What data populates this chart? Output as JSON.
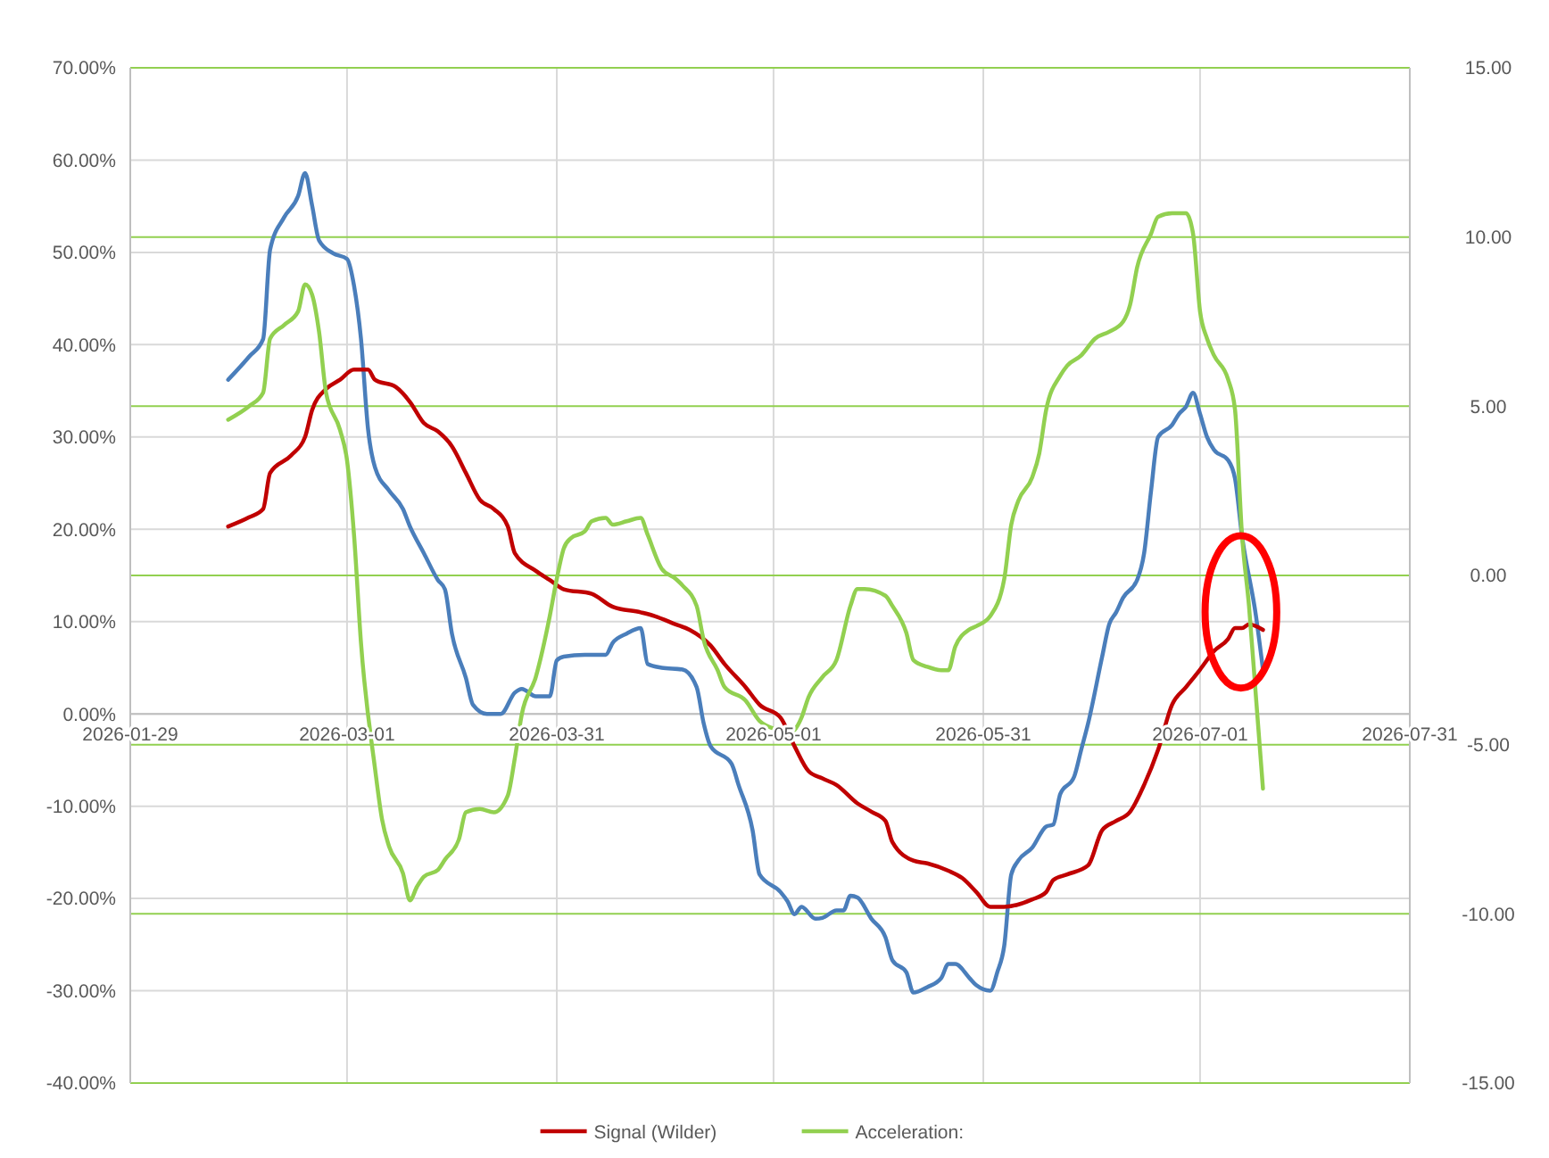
{
  "chart_data": {
    "type": "line",
    "xlim": [
      "2026-01-29",
      "2026-07-31"
    ],
    "xticks": [
      {
        "value": "2026-01-29",
        "label": "2026-01-29"
      },
      {
        "value": "2026-03-01",
        "label": "2026-03-01"
      },
      {
        "value": "2026-03-31",
        "label": "2026-03-31"
      },
      {
        "value": "2026-05-01",
        "label": "2026-05-01"
      },
      {
        "value": "2026-05-31",
        "label": "2026-05-31"
      },
      {
        "value": "2026-07-01",
        "label": "2026-07-01"
      },
      {
        "value": "2026-07-31",
        "label": "2026-07-31"
      }
    ],
    "ylim": [
      -40,
      70
    ],
    "yticks": [
      {
        "value": 70,
        "label": "70.00%"
      },
      {
        "value": 60,
        "label": "60.00%"
      },
      {
        "value": 50,
        "label": "50.00%"
      },
      {
        "value": 40,
        "label": "40.00%"
      },
      {
        "value": 30,
        "label": "30.00%"
      },
      {
        "value": 20,
        "label": "20.00%"
      },
      {
        "value": 10,
        "label": "10.00%"
      },
      {
        "value": 0,
        "label": "0.00%"
      },
      {
        "value": -10,
        "label": "-10.00%"
      },
      {
        "value": -20,
        "label": "-20.00%"
      },
      {
        "value": -30,
        "label": "-30.00%"
      },
      {
        "value": -40,
        "label": "-40.00%"
      }
    ],
    "y2lim": [
      -15,
      15
    ],
    "y2ticks": [
      {
        "value": 15,
        "label": "15.00"
      },
      {
        "value": 10,
        "label": "10.00"
      },
      {
        "value": 5,
        "label": "5.00"
      },
      {
        "value": 0,
        "label": "0.00"
      },
      {
        "value": -5,
        "label": "-5.00"
      },
      {
        "value": -10,
        "label": "-10.00"
      },
      {
        "value": -15,
        "label": "-15.00"
      }
    ],
    "grid": true,
    "legend": "bottom",
    "series": [
      {
        "color": "#4a7ebb",
        "x": [
          "2026-02-12",
          "2026-02-15",
          "2026-02-17",
          "2026-02-18",
          "2026-02-20",
          "2026-02-22",
          "2026-02-23",
          "2026-02-24",
          "2026-02-25",
          "2026-02-27",
          "2026-03-01",
          "2026-03-02",
          "2026-03-03",
          "2026-03-04",
          "2026-03-05",
          "2026-03-07",
          "2026-03-09",
          "2026-03-10",
          "2026-03-12",
          "2026-03-14",
          "2026-03-15",
          "2026-03-16",
          "2026-03-18",
          "2026-03-19",
          "2026-03-21",
          "2026-03-23",
          "2026-03-25",
          "2026-03-26",
          "2026-03-28",
          "2026-03-30",
          "2026-03-31",
          "2026-04-01",
          "2026-04-04",
          "2026-04-07",
          "2026-04-08",
          "2026-04-10",
          "2026-04-12",
          "2026-04-13",
          "2026-04-15",
          "2026-04-18",
          "2026-04-20",
          "2026-04-21",
          "2026-04-22",
          "2026-04-25",
          "2026-04-26",
          "2026-04-28",
          "2026-04-29",
          "2026-05-02",
          "2026-05-03",
          "2026-05-04",
          "2026-05-05",
          "2026-05-07",
          "2026-05-08",
          "2026-05-10",
          "2026-05-11",
          "2026-05-12",
          "2026-05-13",
          "2026-05-15",
          "2026-05-17",
          "2026-05-18",
          "2026-05-20",
          "2026-05-21",
          "2026-05-23",
          "2026-05-25",
          "2026-05-26",
          "2026-05-27",
          "2026-05-29",
          "2026-05-30",
          "2026-06-01",
          "2026-06-02",
          "2026-06-03",
          "2026-06-04",
          "2026-06-05",
          "2026-06-07",
          "2026-06-09",
          "2026-06-10",
          "2026-06-11",
          "2026-06-13",
          "2026-06-14",
          "2026-06-15",
          "2026-06-17",
          "2026-06-18",
          "2026-06-19",
          "2026-06-20",
          "2026-06-22",
          "2026-06-23",
          "2026-06-24",
          "2026-06-25",
          "2026-06-27",
          "2026-06-28",
          "2026-06-29",
          "2026-06-30",
          "2026-07-01",
          "2026-07-02",
          "2026-07-03",
          "2026-07-05",
          "2026-07-06",
          "2026-07-07",
          "2026-07-09",
          "2026-07-10"
        ],
        "values": [
          36.2,
          38.7,
          40.6,
          50.3,
          53.8,
          56.1,
          58.6,
          55.1,
          51.3,
          49.9,
          49.3,
          46.4,
          40.6,
          30.9,
          26.7,
          24.2,
          22.2,
          20.3,
          17.4,
          14.5,
          13.5,
          8.7,
          3.9,
          1.0,
          0,
          0,
          2.3,
          2.7,
          1.9,
          1.9,
          5.8,
          6.2,
          6.4,
          6.4,
          7.7,
          8.7,
          9.3,
          5.4,
          5.0,
          4.8,
          2.9,
          -1.0,
          -3.5,
          -5.4,
          -7.7,
          -12.6,
          -17.4,
          -19.3,
          -20.3,
          -21.7,
          -20.9,
          -22.2,
          -22.1,
          -21.3,
          -21.3,
          -19.7,
          -19.9,
          -22.2,
          -24.2,
          -26.7,
          -28.0,
          -30.2,
          -29.6,
          -28.6,
          -27.1,
          -27.1,
          -28.6,
          -29.4,
          -30.0,
          -28.0,
          -25.1,
          -17.4,
          -15.9,
          -14.5,
          -12.2,
          -12.0,
          -8.7,
          -6.8,
          -3.9,
          -1.0,
          6.2,
          9.7,
          11.0,
          12.6,
          14.5,
          17.4,
          24.2,
          30.0,
          31.3,
          32.5,
          33.3,
          34.8,
          32.5,
          30.0,
          28.6,
          27.5,
          25.5,
          19.3,
          10.6,
          4.8
        ]
      },
      {
        "name": "Signal (Wilder)",
        "color": "#c00000",
        "x": [
          "2026-02-12",
          "2026-02-15",
          "2026-02-17",
          "2026-02-18",
          "2026-02-21",
          "2026-02-23",
          "2026-02-24",
          "2026-02-26",
          "2026-02-28",
          "2026-03-02",
          "2026-03-04",
          "2026-03-05",
          "2026-03-08",
          "2026-03-10",
          "2026-03-12",
          "2026-03-14",
          "2026-03-16",
          "2026-03-18",
          "2026-03-20",
          "2026-03-22",
          "2026-03-24",
          "2026-03-25",
          "2026-03-28",
          "2026-03-30",
          "2026-04-01",
          "2026-04-05",
          "2026-04-08",
          "2026-04-12",
          "2026-04-14",
          "2026-04-17",
          "2026-04-19",
          "2026-04-22",
          "2026-04-24",
          "2026-04-27",
          "2026-04-29",
          "2026-05-02",
          "2026-05-04",
          "2026-05-06",
          "2026-05-08",
          "2026-05-10",
          "2026-05-13",
          "2026-05-15",
          "2026-05-17",
          "2026-05-18",
          "2026-05-21",
          "2026-05-23",
          "2026-05-26",
          "2026-05-28",
          "2026-05-30",
          "2026-06-01",
          "2026-06-03",
          "2026-06-07",
          "2026-06-09",
          "2026-06-10",
          "2026-06-12",
          "2026-06-15",
          "2026-06-17",
          "2026-06-19",
          "2026-06-21",
          "2026-06-23",
          "2026-06-25",
          "2026-06-27",
          "2026-06-29",
          "2026-07-01",
          "2026-07-03",
          "2026-07-05",
          "2026-07-06",
          "2026-07-07",
          "2026-07-08",
          "2026-07-10"
        ],
        "values": [
          20.3,
          21.3,
          22.2,
          26.1,
          28.0,
          30.0,
          32.9,
          35.2,
          36.2,
          37.3,
          37.3,
          36.2,
          35.4,
          33.8,
          31.5,
          30.6,
          29.0,
          26.1,
          23.2,
          22.2,
          20.3,
          17.4,
          15.5,
          14.5,
          13.5,
          13.0,
          11.6,
          11.0,
          10.6,
          9.7,
          9.1,
          7.4,
          5.4,
          2.9,
          1.0,
          -0.4,
          -3.5,
          -6.2,
          -7.0,
          -7.7,
          -9.7,
          -10.6,
          -11.6,
          -13.9,
          -15.9,
          -16.2,
          -17.0,
          -17.8,
          -19.3,
          -20.9,
          -20.9,
          -20.1,
          -19.3,
          -18.0,
          -17.4,
          -16.4,
          -12.6,
          -11.6,
          -10.6,
          -7.7,
          -3.9,
          1.0,
          2.9,
          4.8,
          6.8,
          8.1,
          9.3,
          9.3,
          9.7,
          9.1
        ]
      },
      {
        "name": "Acceleration:",
        "color": "#92d050",
        "axis": "y2",
        "x": [
          "2026-02-12",
          "2026-02-15",
          "2026-02-17",
          "2026-02-18",
          "2026-02-20",
          "2026-02-22",
          "2026-02-23",
          "2026-02-24",
          "2026-02-25",
          "2026-02-26",
          "2026-02-28",
          "2026-03-01",
          "2026-03-02",
          "2026-03-03",
          "2026-03-05",
          "2026-03-06",
          "2026-03-07",
          "2026-03-09",
          "2026-03-10",
          "2026-03-11",
          "2026-03-12",
          "2026-03-14",
          "2026-03-15",
          "2026-03-17",
          "2026-03-18",
          "2026-03-20",
          "2026-03-22",
          "2026-03-24",
          "2026-03-25",
          "2026-03-26",
          "2026-03-28",
          "2026-03-30",
          "2026-03-31",
          "2026-04-01",
          "2026-04-02",
          "2026-04-04",
          "2026-04-05",
          "2026-04-07",
          "2026-04-08",
          "2026-04-10",
          "2026-04-12",
          "2026-04-13",
          "2026-04-15",
          "2026-04-17",
          "2026-04-18",
          "2026-04-20",
          "2026-04-21",
          "2026-04-23",
          "2026-04-24",
          "2026-04-27",
          "2026-04-29",
          "2026-05-02",
          "2026-05-03",
          "2026-05-05",
          "2026-05-06",
          "2026-05-08",
          "2026-05-10",
          "2026-05-12",
          "2026-05-13",
          "2026-05-14",
          "2026-05-17",
          "2026-05-18",
          "2026-05-20",
          "2026-05-21",
          "2026-05-23",
          "2026-05-25",
          "2026-05-26",
          "2026-05-27",
          "2026-05-29",
          "2026-05-30",
          "2026-06-01",
          "2026-06-03",
          "2026-06-04",
          "2026-06-05",
          "2026-06-07",
          "2026-06-08",
          "2026-06-09",
          "2026-06-11",
          "2026-06-12",
          "2026-06-14",
          "2026-06-16",
          "2026-06-18",
          "2026-06-20",
          "2026-06-21",
          "2026-06-22",
          "2026-06-24",
          "2026-06-25",
          "2026-06-27",
          "2026-06-29",
          "2026-06-30",
          "2026-07-01",
          "2026-07-02",
          "2026-07-03",
          "2026-07-05",
          "2026-07-06",
          "2026-07-07",
          "2026-07-08",
          "2026-07-09",
          "2026-07-10"
        ],
        "values": [
          4.6,
          5.0,
          5.4,
          7.0,
          7.4,
          7.8,
          8.6,
          8.3,
          7.2,
          5.4,
          4.3,
          3.4,
          1.2,
          -2.0,
          -5.7,
          -7.2,
          -8.0,
          -8.8,
          -9.6,
          -9.2,
          -8.9,
          -8.7,
          -8.4,
          -7.8,
          -7.0,
          -6.9,
          -7.0,
          -6.5,
          -5.4,
          -4.1,
          -3.0,
          -1.2,
          -0.1,
          0.8,
          1.1,
          1.3,
          1.6,
          1.7,
          1.5,
          1.6,
          1.7,
          1.2,
          0.2,
          -0.1,
          -0.3,
          -0.9,
          -1.9,
          -2.8,
          -3.3,
          -3.7,
          -4.3,
          -4.6,
          -4.7,
          -4.2,
          -3.6,
          -3.0,
          -2.5,
          -0.9,
          -0.4,
          -0.4,
          -0.6,
          -0.9,
          -1.7,
          -2.5,
          -2.7,
          -2.8,
          -2.8,
          -2.1,
          -1.6,
          -1.5,
          -1.2,
          -0.1,
          1.5,
          2.2,
          2.9,
          3.6,
          4.9,
          5.9,
          6.2,
          6.5,
          7.0,
          7.2,
          7.5,
          8.0,
          9.1,
          10.1,
          10.6,
          10.7,
          10.7,
          10.1,
          7.8,
          7.0,
          6.5,
          5.8,
          4.9,
          1.2,
          -0.9,
          -3.6,
          -6.3
        ]
      }
    ]
  }
}
